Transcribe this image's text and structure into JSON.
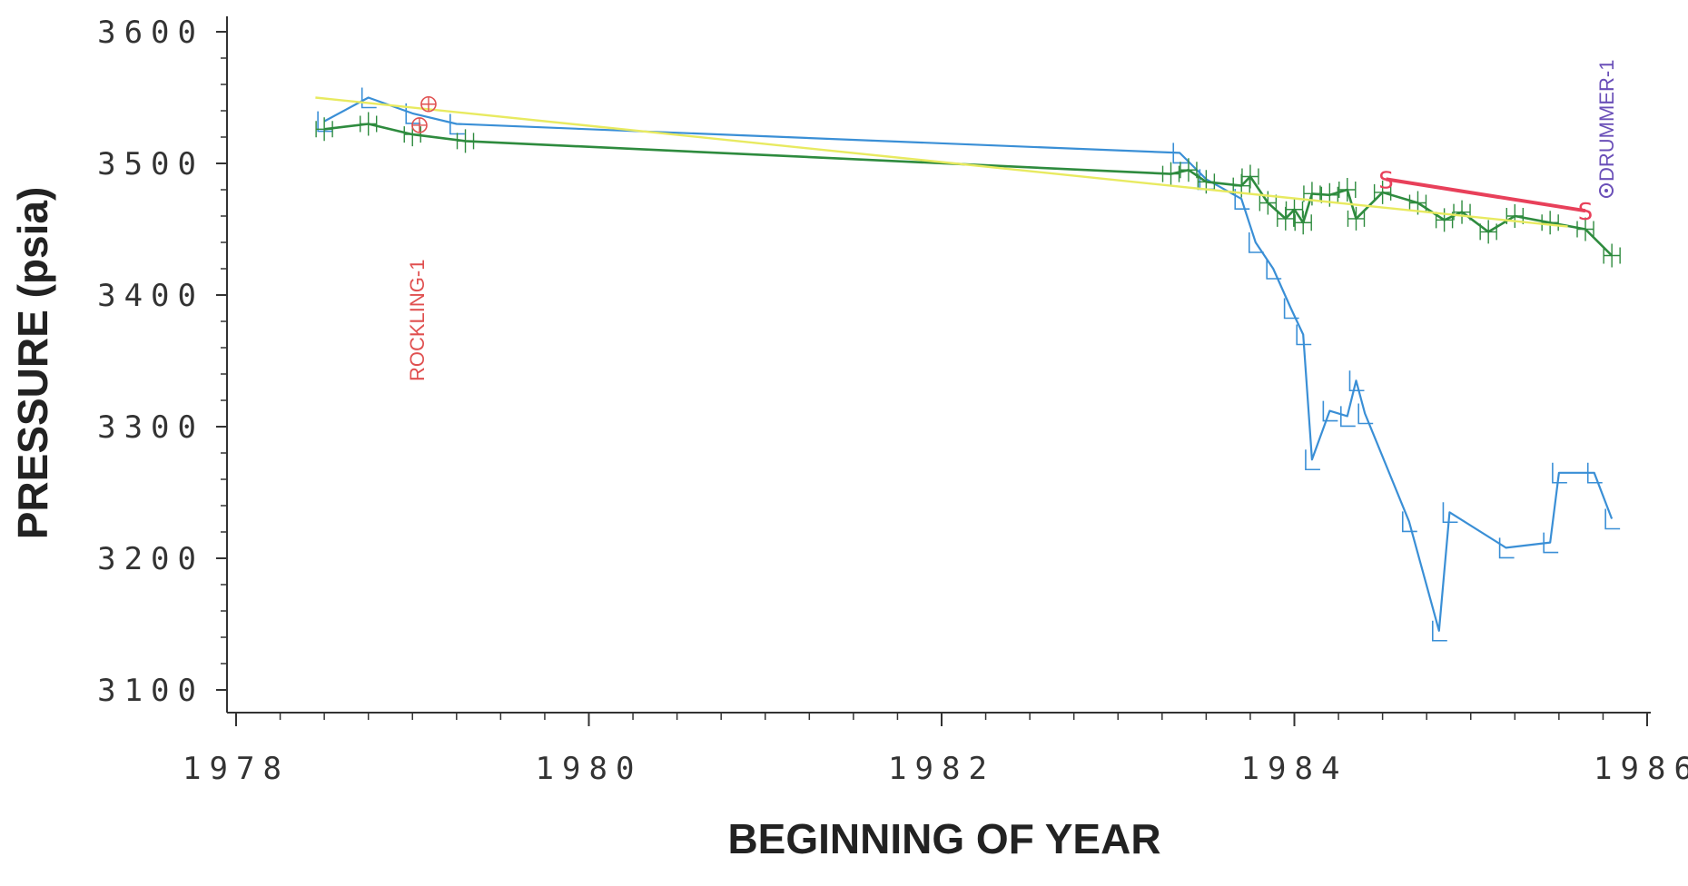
{
  "chart_data": {
    "type": "line",
    "title": "",
    "xlabel": "BEGINNING OF YEAR",
    "ylabel": "PRESSURE (psia)",
    "xlim": [
      1978,
      1986
    ],
    "ylim": [
      3100,
      3600
    ],
    "x_ticks": [
      "1978",
      "1980",
      "1982",
      "1984",
      "1986"
    ],
    "y_ticks": [
      "3100",
      "3200",
      "3300",
      "3400",
      "3500",
      "3600"
    ],
    "grid": false,
    "annotations": [
      "ROCKLING-1",
      "DRUMMER-1"
    ],
    "colors": {
      "blue": "#3a8fd6",
      "green": "#2e8b3e",
      "yellow": "#e8ea60",
      "red": "#e8405a",
      "annotation_red": "#e05050",
      "annotation_purple": "#6a4fb8",
      "axis": "#333333"
    },
    "series": [
      {
        "color": "#3a8fd6",
        "x": [
          1978.5,
          1978.75,
          1979.0,
          1979.25,
          1983.35,
          1983.5,
          1983.7,
          1983.78,
          1983.88,
          1983.98,
          1984.05,
          1984.1,
          1984.2,
          1984.3,
          1984.35,
          1984.4,
          1984.65,
          1984.82,
          1984.88,
          1985.2,
          1985.45,
          1985.5,
          1985.7,
          1985.8
        ],
        "y": [
          3532,
          3550,
          3538,
          3530,
          3508,
          3488,
          3473,
          3440,
          3420,
          3390,
          3370,
          3275,
          3312,
          3308,
          3335,
          3310,
          3228,
          3145,
          3235,
          3208,
          3212,
          3265,
          3265,
          3230
        ]
      },
      {
        "color": "#2e8b3e",
        "x": [
          1978.5,
          1978.75,
          1979.0,
          1979.3,
          1983.3,
          1983.4,
          1983.5,
          1983.7,
          1983.75,
          1983.85,
          1983.95,
          1984.0,
          1984.05,
          1984.1,
          1984.2,
          1984.3,
          1984.35,
          1984.5,
          1984.7,
          1984.85,
          1984.95,
          1985.1,
          1985.25,
          1985.45,
          1985.65,
          1985.8
        ],
        "y": [
          3526,
          3530,
          3522,
          3517,
          3492,
          3495,
          3486,
          3483,
          3490,
          3470,
          3458,
          3465,
          3455,
          3477,
          3476,
          3480,
          3458,
          3478,
          3470,
          3457,
          3463,
          3448,
          3460,
          3455,
          3450,
          3430
        ]
      },
      {
        "color": "#e8ea60",
        "x": [
          1978.45,
          1985.55
        ],
        "y": [
          3550,
          3452
        ]
      },
      {
        "color": "#e8405a",
        "x": [
          1984.52,
          1985.65
        ],
        "y": [
          3488,
          3464
        ]
      }
    ]
  }
}
